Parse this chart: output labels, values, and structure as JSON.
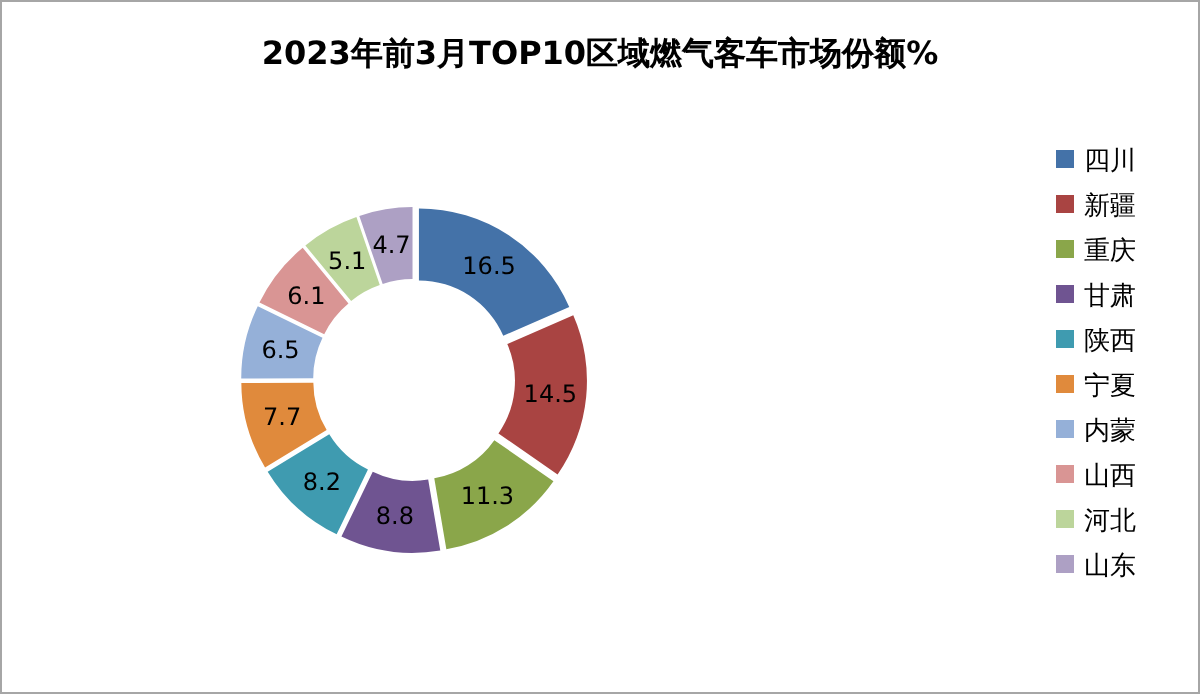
{
  "chart_data": {
    "type": "donut",
    "title": "2023年前3月TOP10区域燃气客车市场份额%",
    "categories": [
      "四川",
      "新疆",
      "重庆",
      "甘肃",
      "陕西",
      "宁夏",
      "内蒙",
      "山西",
      "河北",
      "山东"
    ],
    "values": [
      16.5,
      14.5,
      11.3,
      8.8,
      8.2,
      7.7,
      6.5,
      6.1,
      5.1,
      4.7
    ],
    "colors": [
      "#4472a8",
      "#a94442",
      "#8aa64a",
      "#6f5491",
      "#3f9bb0",
      "#e08a3c",
      "#95b0d8",
      "#d99594",
      "#bcd59b",
      "#ada0c4"
    ],
    "data_labels": true,
    "legend": "right"
  }
}
